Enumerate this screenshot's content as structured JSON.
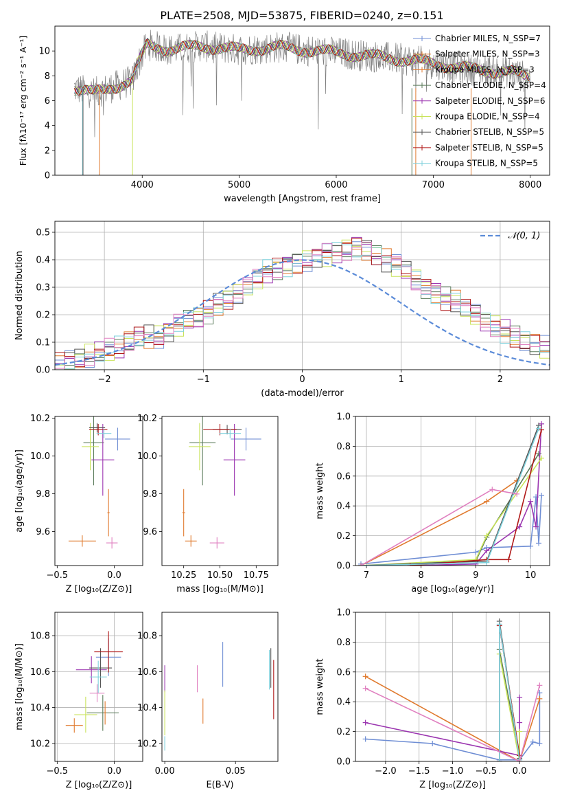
{
  "title": "PLATE=2508, MJD=53875, FIBERID=0240, z=0.151",
  "colors": {
    "cm": "#6f8ed4",
    "sm": "#e07a2e",
    "km": "#e07a2e",
    "ce": "#5a7a5a",
    "se": "#9b35b0",
    "ke": "#c9e35a",
    "cs": "#555555",
    "ss": "#b01818",
    "ks": "#7dd0dc",
    "pink": "#e080c0",
    "data": "#808080"
  },
  "legend": [
    "Chabrier MILES, N_SSP=7",
    "Salpeter MILES, N_SSP=3",
    "Kroupa MILES, N_SSP=3",
    "Chabrier ELODIE, N_SSP=4",
    "Salpeter ELODIE, N_SSP=6",
    "Kroupa ELODIE, N_SSP=4",
    "Chabrier STELIB, N_SSP=5",
    "Salpeter STELIB, N_SSP=5",
    "Kroupa STELIB, N_SSP=5"
  ],
  "chart_data": [
    {
      "id": "spectrum",
      "type": "line",
      "xlabel": "wavelength [Angstrom, rest frame]",
      "ylabel": "Flux [fλ10⁻¹⁷ erg cm⁻² s⁻¹ A⁻¹]",
      "xlim": [
        3100,
        8200
      ],
      "ylim": [
        0,
        12
      ],
      "xticks": [
        4000,
        5000,
        6000,
        7000,
        8000
      ],
      "yticks": [
        0,
        2,
        4,
        6,
        8,
        10
      ],
      "model_anchor_points": {
        "x": [
          3300,
          3500,
          3700,
          3900,
          3950,
          4050,
          4300,
          4600,
          5000,
          5400,
          5800,
          6200,
          6600,
          7000,
          7400,
          7800,
          7950
        ],
        "y": [
          7.0,
          6.6,
          7.1,
          7.6,
          8.8,
          10.5,
          10.1,
          10.4,
          10.1,
          10.3,
          10.0,
          9.7,
          9.4,
          9.0,
          8.5,
          8.3,
          7.9
        ]
      }
    },
    {
      "id": "residuals",
      "type": "histogram",
      "xlabel": "(data-model)/error",
      "ylabel": "Normed distribution",
      "xlim": [
        -2.5,
        2.5
      ],
      "ylim": [
        0,
        0.54
      ],
      "xticks": [
        -2,
        -1,
        0,
        1,
        2
      ],
      "yticks": [
        0.0,
        0.1,
        0.2,
        0.3,
        0.4,
        0.5
      ],
      "legend": "𝒩(0, 1)",
      "bin_width": 0.1,
      "series_approx": [
        0.02,
        0.03,
        0.04,
        0.05,
        0.06,
        0.07,
        0.08,
        0.1,
        0.12,
        0.12,
        0.12,
        0.14,
        0.16,
        0.18,
        0.19,
        0.21,
        0.24,
        0.26,
        0.28,
        0.3,
        0.33,
        0.36,
        0.37,
        0.38,
        0.39,
        0.4,
        0.41,
        0.42,
        0.43,
        0.44,
        0.45,
        0.44,
        0.42,
        0.4,
        0.38,
        0.36,
        0.33,
        0.3,
        0.28,
        0.26,
        0.25,
        0.22,
        0.2,
        0.18,
        0.16,
        0.14,
        0.12,
        0.1,
        0.09,
        0.08
      ]
    },
    {
      "id": "age-vs-Z",
      "type": "scatter",
      "xlabel": "Z [log₁₀(Z/Z⊙)]",
      "ylabel": "age  [log₁₀(age/yr)]",
      "xlim": [
        -0.52,
        0.25
      ],
      "ylim": [
        9.42,
        10.21
      ],
      "xticks": [
        -0.5,
        0.0
      ],
      "yticks": [
        9.6,
        9.8,
        10.0,
        10.2
      ],
      "points": [
        {
          "c": "cm",
          "x": 0.03,
          "y": 10.09,
          "xe": 0.22,
          "ye": 0.12
        },
        {
          "c": "sm",
          "x": -0.28,
          "y": 9.55,
          "xe": 0.24,
          "ye": 0.06
        },
        {
          "c": "ce",
          "x": -0.18,
          "y": 10.07,
          "xe": 0.18,
          "ye": 0.45
        },
        {
          "c": "se",
          "x": -0.1,
          "y": 9.98,
          "xe": 0.2,
          "ye": 0.38
        },
        {
          "c": "ke",
          "x": -0.21,
          "y": 10.05,
          "xe": 0.15,
          "ye": 0.25
        },
        {
          "c": "cs",
          "x": -0.15,
          "y": 10.15,
          "xe": 0.14,
          "ye": 0.05
        },
        {
          "c": "ss",
          "x": -0.14,
          "y": 10.14,
          "xe": 0.16,
          "ye": 0.06
        },
        {
          "c": "ks",
          "x": -0.09,
          "y": 10.12,
          "xe": 0.13,
          "ye": 0.05
        },
        {
          "c": "pink",
          "x": -0.02,
          "y": 9.54,
          "xe": 0.1,
          "ye": 0.06
        },
        {
          "c": "sm",
          "x": -0.05,
          "y": 9.7,
          "xe": 0.02,
          "ye": 0.25
        }
      ]
    },
    {
      "id": "age-vs-mass",
      "type": "scatter",
      "xlabel": "mass [log₁₀(M/M⊙)]",
      "ylabel": "",
      "xlim": [
        10.1,
        10.9
      ],
      "ylim": [
        9.42,
        10.21
      ],
      "xticks": [
        10.25,
        10.5,
        10.75
      ],
      "yticks": [
        9.6,
        9.8,
        10.0,
        10.2
      ],
      "points": [
        {
          "c": "cm",
          "x": 10.68,
          "y": 10.09,
          "xe": 0.21,
          "ye": 0.12
        },
        {
          "c": "sm",
          "x": 10.3,
          "y": 9.55,
          "xe": 0.08,
          "ye": 0.06
        },
        {
          "c": "ce",
          "x": 10.38,
          "y": 10.07,
          "xe": 0.18,
          "ye": 0.45
        },
        {
          "c": "se",
          "x": 10.6,
          "y": 9.98,
          "xe": 0.15,
          "ye": 0.38
        },
        {
          "c": "ke",
          "x": 10.36,
          "y": 10.05,
          "xe": 0.15,
          "ye": 0.25
        },
        {
          "c": "cs",
          "x": 10.55,
          "y": 10.14,
          "xe": 0.2,
          "ye": 0.05
        },
        {
          "c": "ss",
          "x": 10.5,
          "y": 10.14,
          "xe": 0.23,
          "ye": 0.06
        },
        {
          "c": "ks",
          "x": 10.57,
          "y": 10.12,
          "xe": 0.15,
          "ye": 0.05
        },
        {
          "c": "pink",
          "x": 10.48,
          "y": 9.54,
          "xe": 0.1,
          "ye": 0.06
        },
        {
          "c": "sm",
          "x": 10.25,
          "y": 9.7,
          "xe": 0.02,
          "ye": 0.25
        }
      ]
    },
    {
      "id": "massweight-vs-age",
      "type": "line",
      "xlabel": "age  [log₁₀(age/yr)]",
      "ylabel": "mass weight",
      "xlim": [
        6.8,
        10.35
      ],
      "ylim": [
        0,
        1
      ],
      "xticks": [
        7,
        8,
        9,
        10
      ],
      "yticks": [
        0.0,
        0.2,
        0.4,
        0.6,
        0.8,
        1.0
      ],
      "series": [
        {
          "c": "cm",
          "x": [
            6.9,
            9.0,
            9.2,
            10.0,
            10.1,
            10.15,
            10.2
          ],
          "y": [
            0.01,
            0.09,
            0.12,
            0.13,
            0.46,
            0.15,
            0.47
          ]
        },
        {
          "c": "sm",
          "x": [
            6.9,
            9.2,
            9.75
          ],
          "y": [
            0.0,
            0.43,
            0.57
          ]
        },
        {
          "c": "ce",
          "x": [
            6.9,
            9.0,
            9.2,
            10.15
          ],
          "y": [
            0.0,
            0.03,
            0.19,
            0.75
          ]
        },
        {
          "c": "se",
          "x": [
            7.8,
            9.0,
            9.2,
            9.8,
            10.0,
            10.1,
            10.2
          ],
          "y": [
            0.0,
            0.01,
            0.1,
            0.26,
            0.43,
            0.26,
            0.95
          ]
        },
        {
          "c": "ke",
          "x": [
            6.9,
            9.0,
            9.2,
            10.2
          ],
          "y": [
            0.0,
            0.04,
            0.2,
            0.72
          ]
        },
        {
          "c": "cs",
          "x": [
            6.9,
            9.2,
            10.15
          ],
          "y": [
            0.0,
            0.03,
            0.94
          ]
        },
        {
          "c": "ss",
          "x": [
            7.8,
            9.2,
            9.6,
            10.2
          ],
          "y": [
            0.0,
            0.04,
            0.04,
            0.91
          ]
        },
        {
          "c": "ks",
          "x": [
            6.9,
            9.2,
            10.15
          ],
          "y": [
            0.0,
            0.02,
            0.92
          ]
        },
        {
          "c": "pink",
          "x": [
            6.9,
            9.3,
            9.75
          ],
          "y": [
            0.0,
            0.51,
            0.48
          ]
        }
      ]
    },
    {
      "id": "mass-vs-Z",
      "type": "scatter",
      "xlabel": "Z [log₁₀(Z/Z⊙)]",
      "ylabel": "mass [log₁₀(M/M⊙)]",
      "xlim": [
        -0.52,
        0.25
      ],
      "ylim": [
        10.1,
        10.93
      ],
      "xticks": [
        -0.5,
        0.0
      ],
      "yticks": [
        10.2,
        10.4,
        10.6,
        10.8
      ],
      "points": [
        {
          "c": "cm",
          "x": -0.05,
          "y": 10.68,
          "xe": 0.22,
          "ye": 0.21
        },
        {
          "c": "sm",
          "x": -0.35,
          "y": 10.3,
          "xe": 0.15,
          "ye": 0.08
        },
        {
          "c": "ce",
          "x": -0.1,
          "y": 10.37,
          "xe": 0.28,
          "ye": 0.2
        },
        {
          "c": "se",
          "x": -0.2,
          "y": 10.61,
          "xe": 0.27,
          "ye": 0.15
        },
        {
          "c": "ke",
          "x": -0.25,
          "y": 10.36,
          "xe": 0.2,
          "ye": 0.2
        },
        {
          "c": "cs",
          "x": -0.12,
          "y": 10.62,
          "xe": 0.2,
          "ye": 0.22
        },
        {
          "c": "ss",
          "x": -0.05,
          "y": 10.71,
          "xe": 0.25,
          "ye": 0.23
        },
        {
          "c": "ks",
          "x": -0.14,
          "y": 10.57,
          "xe": 0.15,
          "ye": 0.18
        },
        {
          "c": "pink",
          "x": -0.15,
          "y": 10.48,
          "xe": 0.13,
          "ye": 0.1
        },
        {
          "c": "sm",
          "x": -0.08,
          "y": 10.37,
          "xe": 0.02,
          "ye": 0.13
        }
      ]
    },
    {
      "id": "mass-vs-ebv",
      "type": "scatter",
      "xlabel": "E(B-V)",
      "ylabel": "",
      "xlim": [
        -0.002,
        0.08
      ],
      "ylim": [
        10.1,
        10.93
      ],
      "xticks": [
        0.0,
        0.05
      ],
      "yticks": [
        10.2,
        10.4,
        10.6,
        10.8
      ],
      "points": [
        {
          "c": "se",
          "x": 0.0,
          "y": 10.56,
          "ye": 0.15
        },
        {
          "c": "ke",
          "x": 0.0,
          "y": 10.37,
          "ye": 0.25
        },
        {
          "c": "ks",
          "x": 0.0,
          "y": 10.2,
          "ye": 0.08
        },
        {
          "c": "pink",
          "x": 0.023,
          "y": 10.56,
          "ye": 0.15
        },
        {
          "c": "sm",
          "x": 0.027,
          "y": 10.38,
          "ye": 0.14
        },
        {
          "c": "cm",
          "x": 0.041,
          "y": 10.64,
          "ye": 0.25
        },
        {
          "c": "ks",
          "x": 0.074,
          "y": 10.61,
          "ye": 0.22
        },
        {
          "c": "cs",
          "x": 0.075,
          "y": 10.62,
          "ye": 0.22
        },
        {
          "c": "ss",
          "x": 0.077,
          "y": 10.5,
          "ye": 0.33
        }
      ]
    },
    {
      "id": "massweight-vs-Z",
      "type": "line",
      "xlabel": "Z [log₁₀(Z/Z⊙)]",
      "ylabel": "mass weight",
      "xlim": [
        -2.45,
        0.45
      ],
      "ylim": [
        0,
        1
      ],
      "xticks": [
        -2.0,
        -1.5,
        -1.0,
        -0.5,
        0.0
      ],
      "yticks": [
        0.0,
        0.2,
        0.4,
        0.6,
        0.8,
        1.0
      ],
      "series": [
        {
          "c": "cm",
          "x": [
            -2.3,
            -1.3,
            -0.3,
            0.0,
            0.2,
            0.3,
            0.3
          ],
          "y": [
            0.15,
            0.12,
            0.01,
            0.01,
            0.13,
            0.12,
            0.46
          ]
        },
        {
          "c": "sm",
          "x": [
            -2.3,
            0.0,
            0.3
          ],
          "y": [
            0.57,
            0.0,
            0.42
          ]
        },
        {
          "c": "ce",
          "x": [
            -0.3,
            -0.3,
            0.0
          ],
          "y": [
            0.0,
            0.75,
            0.04
          ]
        },
        {
          "c": "se",
          "x": [
            -2.3,
            0.0,
            0.0,
            0.0
          ],
          "y": [
            0.26,
            0.04,
            0.43,
            0.26
          ]
        },
        {
          "c": "ke",
          "x": [
            -0.3,
            0.0,
            0.0
          ],
          "y": [
            0.72,
            0.0,
            0.2
          ]
        },
        {
          "c": "cs",
          "x": [
            -0.3,
            -0.3,
            0.0
          ],
          "y": [
            0.0,
            0.94,
            0.02
          ]
        },
        {
          "c": "ss",
          "x": [
            -0.3,
            -0.3,
            0.0
          ],
          "y": [
            0.0,
            0.91,
            0.04
          ]
        },
        {
          "c": "ks",
          "x": [
            -0.3,
            -0.3,
            0.0
          ],
          "y": [
            0.0,
            0.92,
            0.01
          ]
        },
        {
          "c": "pink",
          "x": [
            -2.3,
            0.0,
            0.3
          ],
          "y": [
            0.49,
            0.0,
            0.51
          ]
        }
      ]
    }
  ]
}
